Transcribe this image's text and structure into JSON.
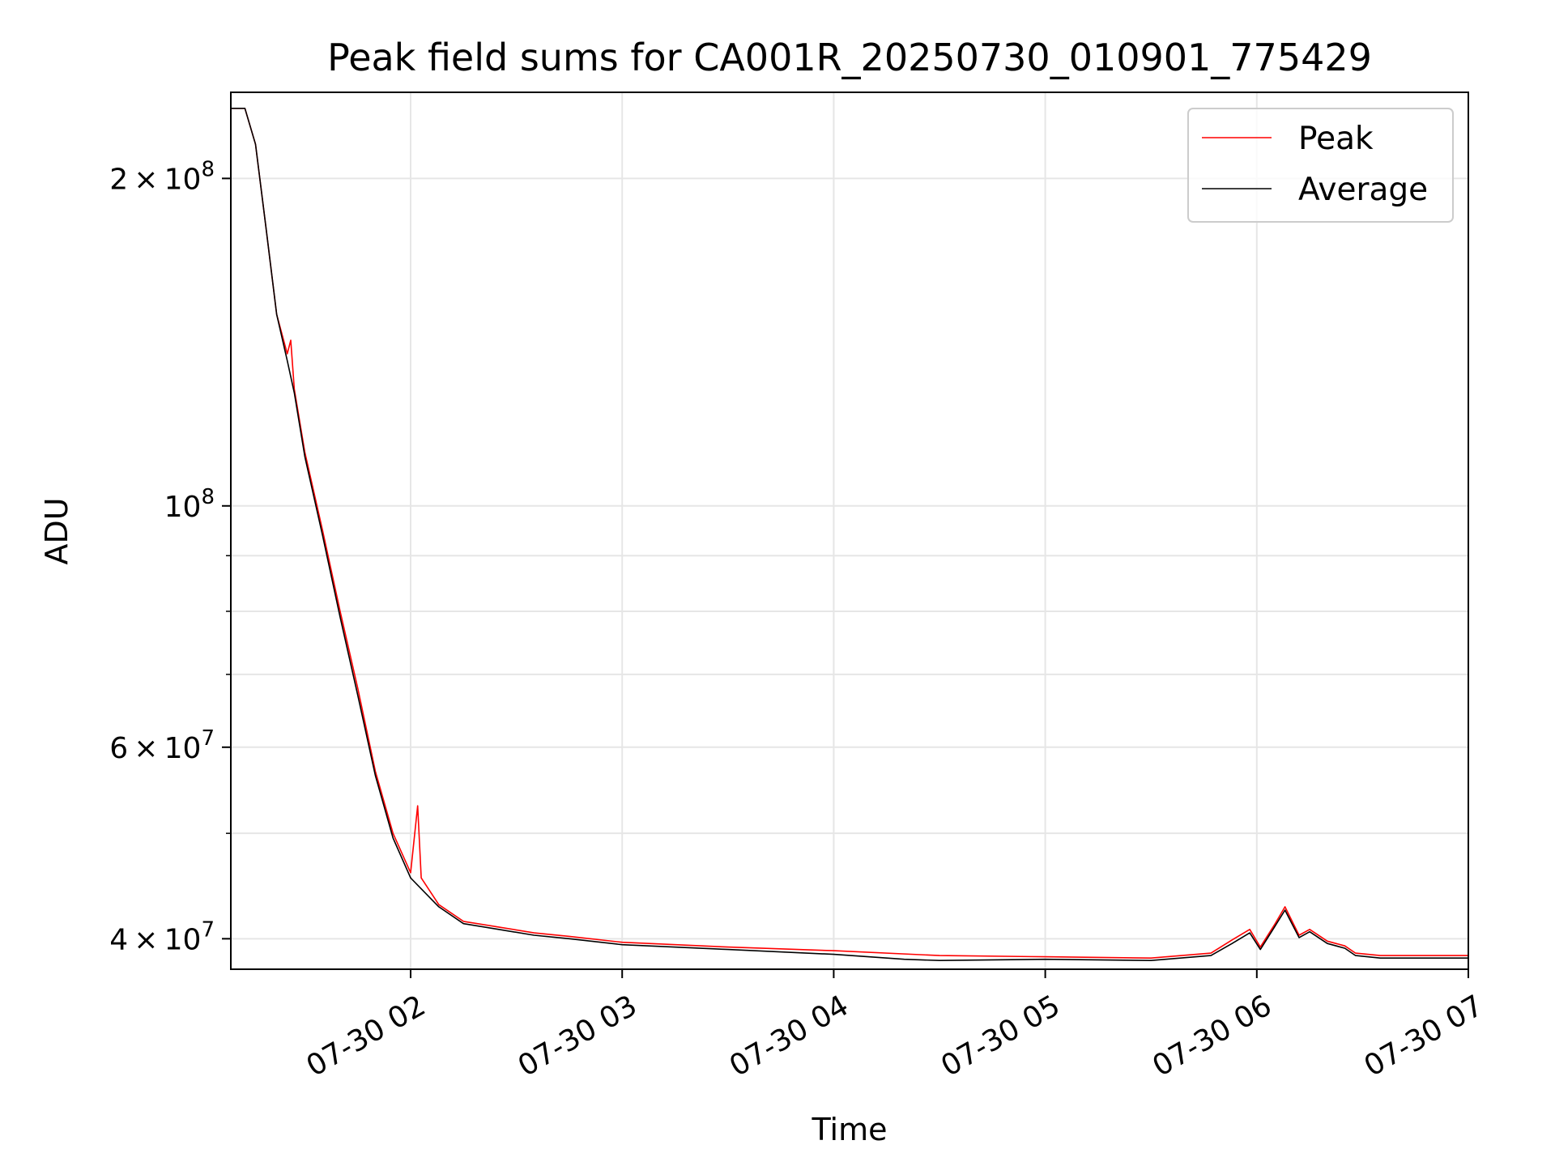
{
  "chart_data": {
    "type": "line",
    "title": "Peak field sums for CA001R_20250730_010901_775429",
    "xlabel": "Time",
    "ylabel": "ADU",
    "y_scale": "log",
    "ylim": [
      37500000,
      240000000
    ],
    "xlim": [
      "07-30 01:09",
      "07-30 07:00"
    ],
    "x_ticks": [
      {
        "t": "07-30 02:00",
        "label": "07-30 02"
      },
      {
        "t": "07-30 03:00",
        "label": "07-30 03"
      },
      {
        "t": "07-30 04:00",
        "label": "07-30 04"
      },
      {
        "t": "07-30 05:00",
        "label": "07-30 05"
      },
      {
        "t": "07-30 06:00",
        "label": "07-30 06"
      },
      {
        "t": "07-30 07:00",
        "label": "07-30 07"
      }
    ],
    "y_ticks": [
      {
        "value": 40000000,
        "mantissa": "4",
        "base": "10",
        "exp": "7"
      },
      {
        "value": 60000000,
        "mantissa": "6",
        "base": "10",
        "exp": "7"
      },
      {
        "value": 100000000,
        "mantissa": "",
        "base": "10",
        "exp": "8"
      },
      {
        "value": 200000000,
        "mantissa": "2",
        "base": "10",
        "exp": "8"
      }
    ],
    "y_minor_ticks": [
      50000000,
      70000000,
      80000000,
      90000000
    ],
    "grid": true,
    "legend_position": "top-right",
    "series": [
      {
        "name": "Peak",
        "color": "#ff0000",
        "points": [
          [
            "07-30 01:09",
            232000000
          ],
          [
            "07-30 01:13",
            232000000
          ],
          [
            "07-30 01:16",
            215000000
          ],
          [
            "07-30 01:19",
            180000000
          ],
          [
            "07-30 01:22",
            150000000
          ],
          [
            "07-30 01:25",
            138000000
          ],
          [
            "07-30 01:26",
            142000000
          ],
          [
            "07-30 01:27",
            128000000
          ],
          [
            "07-30 01:30",
            112000000
          ],
          [
            "07-30 01:35",
            95000000
          ],
          [
            "07-30 01:40",
            80000000
          ],
          [
            "07-30 01:45",
            68000000
          ],
          [
            "07-30 01:50",
            57000000
          ],
          [
            "07-30 01:55",
            50000000
          ],
          [
            "07-30 02:00",
            46000000
          ],
          [
            "07-30 02:02",
            53000000
          ],
          [
            "07-30 02:03",
            45500000
          ],
          [
            "07-30 02:08",
            43000000
          ],
          [
            "07-30 02:15",
            41500000
          ],
          [
            "07-30 02:25",
            41000000
          ],
          [
            "07-30 02:35",
            40500000
          ],
          [
            "07-30 02:45",
            40200000
          ],
          [
            "07-30 03:00",
            39700000
          ],
          [
            "07-30 03:30",
            39300000
          ],
          [
            "07-30 04:00",
            39000000
          ],
          [
            "07-30 04:30",
            38600000
          ],
          [
            "07-30 05:00",
            38500000
          ],
          [
            "07-30 05:30",
            38400000
          ],
          [
            "07-30 05:47",
            38800000
          ],
          [
            "07-30 05:53",
            39900000
          ],
          [
            "07-30 05:58",
            40800000
          ],
          [
            "07-30 06:01",
            39300000
          ],
          [
            "07-30 06:05",
            41200000
          ],
          [
            "07-30 06:08",
            42800000
          ],
          [
            "07-30 06:12",
            40300000
          ],
          [
            "07-30 06:15",
            40800000
          ],
          [
            "07-30 06:20",
            39800000
          ],
          [
            "07-30 06:25",
            39400000
          ],
          [
            "07-30 06:28",
            38800000
          ],
          [
            "07-30 06:35",
            38600000
          ],
          [
            "07-30 07:00",
            38600000
          ]
        ]
      },
      {
        "name": "Average",
        "color": "#000000",
        "points": [
          [
            "07-30 01:09",
            232000000
          ],
          [
            "07-30 01:13",
            232000000
          ],
          [
            "07-30 01:16",
            215000000
          ],
          [
            "07-30 01:19",
            180000000
          ],
          [
            "07-30 01:22",
            150000000
          ],
          [
            "07-30 01:25",
            136000000
          ],
          [
            "07-30 01:27",
            127000000
          ],
          [
            "07-30 01:30",
            111000000
          ],
          [
            "07-30 01:35",
            94000000
          ],
          [
            "07-30 01:40",
            79000000
          ],
          [
            "07-30 01:45",
            67000000
          ],
          [
            "07-30 01:50",
            56500000
          ],
          [
            "07-30 01:55",
            49500000
          ],
          [
            "07-30 02:00",
            45500000
          ],
          [
            "07-30 02:08",
            42800000
          ],
          [
            "07-30 02:15",
            41300000
          ],
          [
            "07-30 02:25",
            40800000
          ],
          [
            "07-30 02:35",
            40300000
          ],
          [
            "07-30 02:45",
            40000000
          ],
          [
            "07-30 03:00",
            39500000
          ],
          [
            "07-30 03:30",
            39100000
          ],
          [
            "07-30 04:00",
            38700000
          ],
          [
            "07-30 04:20",
            38300000
          ],
          [
            "07-30 04:30",
            38200000
          ],
          [
            "07-30 05:00",
            38300000
          ],
          [
            "07-30 05:30",
            38200000
          ],
          [
            "07-30 05:47",
            38600000
          ],
          [
            "07-30 05:53",
            39600000
          ],
          [
            "07-30 05:58",
            40500000
          ],
          [
            "07-30 06:01",
            39100000
          ],
          [
            "07-30 06:05",
            41000000
          ],
          [
            "07-30 06:08",
            42500000
          ],
          [
            "07-30 06:12",
            40100000
          ],
          [
            "07-30 06:15",
            40600000
          ],
          [
            "07-30 06:20",
            39600000
          ],
          [
            "07-30 06:25",
            39200000
          ],
          [
            "07-30 06:28",
            38600000
          ],
          [
            "07-30 06:35",
            38400000
          ],
          [
            "07-30 07:00",
            38400000
          ]
        ]
      }
    ]
  }
}
